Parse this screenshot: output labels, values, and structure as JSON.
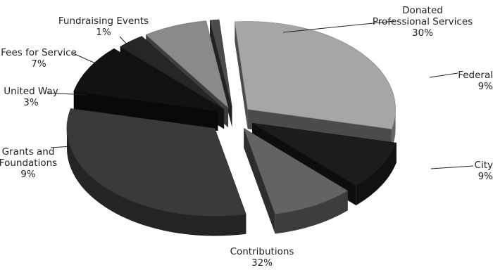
{
  "chart_data": {
    "type": "pie",
    "style": "3d-exploded",
    "unit": "%",
    "series": [
      {
        "name": "Donated Professional Services",
        "label_lines": [
          "Donated",
          "Professional Services"
        ],
        "percent_label": "30%",
        "value": 30,
        "color": "#a6a6a6"
      },
      {
        "name": "Federal",
        "label_lines": [
          "Federal"
        ],
        "percent_label": "9%",
        "value": 9,
        "color": "#1c1c1c"
      },
      {
        "name": "City",
        "label_lines": [
          "City"
        ],
        "percent_label": "9%",
        "value": 9,
        "color": "#636363"
      },
      {
        "name": "Contributions",
        "label_lines": [
          "Contributions"
        ],
        "percent_label": "32%",
        "value": 32,
        "color": "#3a3a3a"
      },
      {
        "name": "Grants and Foundations",
        "label_lines": [
          "Grants and",
          "Foundations"
        ],
        "percent_label": "9%",
        "value": 9,
        "color": "#121212"
      },
      {
        "name": "United Way",
        "label_lines": [
          "United Way"
        ],
        "percent_label": "3%",
        "value": 3,
        "color": "#262626"
      },
      {
        "name": "Fees for Service",
        "label_lines": [
          "Fees for Service"
        ],
        "percent_label": "7%",
        "value": 7,
        "color": "#8a8a8a"
      },
      {
        "name": "Fundraising Events",
        "label_lines": [
          "Fundraising Events"
        ],
        "percent_label": "1%",
        "value": 1,
        "color": "#4a4a4a"
      }
    ]
  }
}
